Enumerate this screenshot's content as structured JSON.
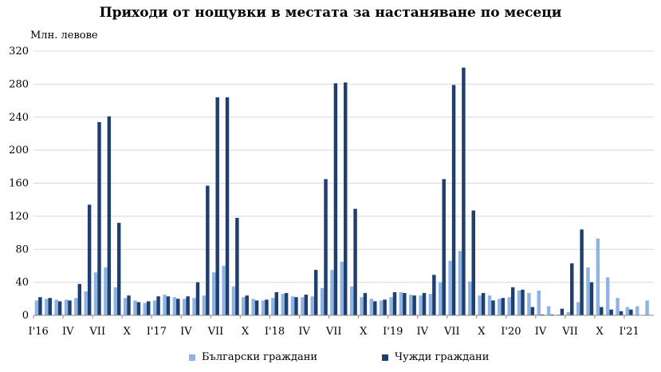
{
  "chart_data": {
    "type": "bar",
    "title": "Приходи от нощувки в местата за настаняване по месеци",
    "ylabel": "Млн. левове",
    "ylim": [
      0,
      320
    ],
    "yticks": [
      0,
      40,
      80,
      120,
      160,
      200,
      240,
      280,
      320
    ],
    "grid": true,
    "legend_position": "bottom",
    "x_tick_labels": [
      {
        "index": 0,
        "label": "I'16"
      },
      {
        "index": 3,
        "label": "IV"
      },
      {
        "index": 6,
        "label": "VII"
      },
      {
        "index": 9,
        "label": "X"
      },
      {
        "index": 12,
        "label": "I'17"
      },
      {
        "index": 15,
        "label": "IV"
      },
      {
        "index": 18,
        "label": "VII"
      },
      {
        "index": 21,
        "label": "X"
      },
      {
        "index": 24,
        "label": "I'18"
      },
      {
        "index": 27,
        "label": "IV"
      },
      {
        "index": 30,
        "label": "VII"
      },
      {
        "index": 33,
        "label": "X"
      },
      {
        "index": 36,
        "label": "I'19"
      },
      {
        "index": 39,
        "label": "IV"
      },
      {
        "index": 42,
        "label": "VII"
      },
      {
        "index": 45,
        "label": "X"
      },
      {
        "index": 48,
        "label": "I'20"
      },
      {
        "index": 51,
        "label": "IV"
      },
      {
        "index": 54,
        "label": "VII"
      },
      {
        "index": 57,
        "label": "X"
      },
      {
        "index": 60,
        "label": "I'21"
      }
    ],
    "series": [
      {
        "name": "Български граждани",
        "color": "#8eb4e3",
        "values": [
          18,
          20,
          19,
          19,
          21,
          29,
          52,
          58,
          34,
          21,
          18,
          15,
          18,
          25,
          22,
          20,
          21,
          24,
          52,
          60,
          35,
          22,
          20,
          18,
          21,
          26,
          23,
          22,
          23,
          33,
          55,
          65,
          35,
          22,
          20,
          18,
          22,
          28,
          25,
          24,
          26,
          40,
          66,
          78,
          41,
          24,
          24,
          20,
          22,
          30,
          27,
          30,
          11,
          1,
          4,
          16,
          58,
          93,
          46,
          21,
          10,
          11,
          18
        ]
      },
      {
        "name": "Чужди граждани",
        "color": "#1f3f6e",
        "values": [
          22,
          21,
          17,
          18,
          38,
          134,
          234,
          241,
          112,
          24,
          16,
          17,
          23,
          23,
          20,
          23,
          40,
          157,
          264,
          264,
          118,
          24,
          18,
          19,
          28,
          27,
          22,
          25,
          55,
          165,
          281,
          282,
          129,
          27,
          17,
          19,
          28,
          27,
          24,
          27,
          49,
          165,
          279,
          300,
          127,
          27,
          18,
          21,
          34,
          31,
          10,
          1,
          1,
          8,
          63,
          104,
          40,
          10,
          7,
          5,
          7,
          0,
          0
        ]
      }
    ]
  }
}
